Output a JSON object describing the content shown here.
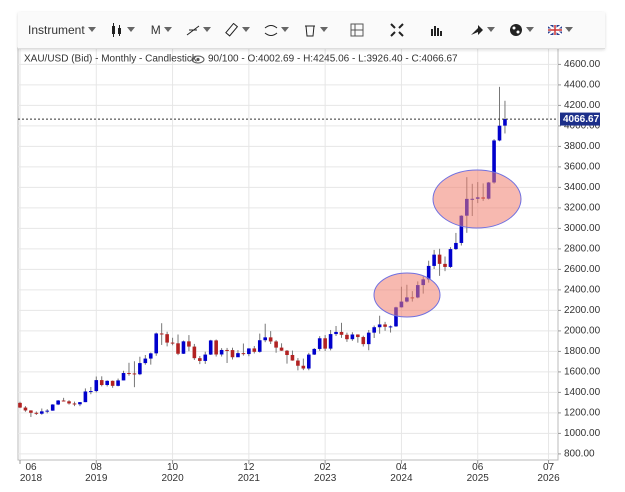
{
  "toolbar": {
    "instrument": "Instrument",
    "period": "M"
  },
  "chart_data": {
    "type": "candlestick",
    "title": "XAU/USD (Bid) - Monthly - Candlestick",
    "subtitle": "90/100 - O:4002.69 - H:4245.06 - L:3926.40 - C:4066.67",
    "last_label": "4066.67",
    "up_color": "#0000cc",
    "down_color": "#b22222",
    "grid": true,
    "x": [
      "2018-06",
      "2018-07",
      "2018-08",
      "2018-09",
      "2018-10",
      "2018-11",
      "2018-12",
      "2019-01",
      "2019-02",
      "2019-03",
      "2019-04",
      "2019-05",
      "2019-06",
      "2019-07",
      "2019-08",
      "2019-09",
      "2019-10",
      "2019-11",
      "2019-12",
      "2020-01",
      "2020-02",
      "2020-03",
      "2020-04",
      "2020-05",
      "2020-06",
      "2020-07",
      "2020-08",
      "2020-09",
      "2020-10",
      "2020-11",
      "2020-12",
      "2021-01",
      "2021-02",
      "2021-03",
      "2021-04",
      "2021-05",
      "2021-06",
      "2021-07",
      "2021-08",
      "2021-09",
      "2021-10",
      "2021-11",
      "2021-12",
      "2022-01",
      "2022-02",
      "2022-03",
      "2022-04",
      "2022-05",
      "2022-06",
      "2022-07",
      "2022-08",
      "2022-09",
      "2022-10",
      "2022-11",
      "2022-12",
      "2023-01",
      "2023-02",
      "2023-03",
      "2023-04",
      "2023-05",
      "2023-06",
      "2023-07",
      "2023-08",
      "2023-09",
      "2023-10",
      "2023-11",
      "2023-12",
      "2024-01",
      "2024-02",
      "2024-03",
      "2024-04",
      "2024-05",
      "2024-06",
      "2024-07",
      "2024-08",
      "2024-09",
      "2024-10",
      "2024-11",
      "2024-12",
      "2025-01",
      "2025-02",
      "2025-03",
      "2025-04",
      "2025-05",
      "2025-06",
      "2025-07",
      "2025-08",
      "2025-09",
      "2025-10",
      "2025-11"
    ],
    "open": [
      1298,
      1252,
      1224,
      1201,
      1192,
      1215,
      1222,
      1282,
      1321,
      1313,
      1292,
      1284,
      1305,
      1409,
      1413,
      1520,
      1472,
      1513,
      1464,
      1517,
      1589,
      1585,
      1577,
      1686,
      1730,
      1781,
      1975,
      1968,
      1886,
      1879,
      1777,
      1898,
      1847,
      1734,
      1707,
      1769,
      1907,
      1770,
      1814,
      1813,
      1743,
      1783,
      1774,
      1829,
      1796,
      1909,
      1937,
      1897,
      1837,
      1807,
      1765,
      1711,
      1660,
      1633,
      1769,
      1824,
      1928,
      1827,
      1969,
      1990,
      1962,
      1919,
      1965,
      1940,
      1871,
      1983,
      2036,
      2063,
      2040,
      2044,
      2230,
      2286,
      2327,
      2326,
      2447,
      2503,
      2634,
      2744,
      2654,
      2624,
      2798,
      2858,
      3124,
      3288,
      3289,
      3303,
      3290,
      3448,
      3858,
      4002.69
    ],
    "high": [
      1309,
      1266,
      1226,
      1214,
      1243,
      1237,
      1285,
      1326,
      1347,
      1324,
      1310,
      1306,
      1439,
      1453,
      1555,
      1557,
      1518,
      1516,
      1535,
      1611,
      1689,
      1704,
      1748,
      1765,
      1789,
      1984,
      2075,
      1992,
      1933,
      1965,
      1906,
      1959,
      1873,
      1755,
      1797,
      1913,
      1916,
      1832,
      1834,
      1836,
      1813,
      1877,
      1830,
      1853,
      1974,
      2070,
      1998,
      1910,
      1879,
      1814,
      1808,
      1735,
      1730,
      1786,
      1833,
      1949,
      1959,
      2009,
      2048,
      2079,
      1983,
      1987,
      1966,
      1953,
      2009,
      2052,
      2148,
      2088,
      2053,
      2236,
      2431,
      2450,
      2388,
      2483,
      2531,
      2685,
      2790,
      2801,
      2726,
      2817,
      2956,
      3128,
      3500,
      3435,
      3452,
      3439,
      3453,
      3871,
      4381,
      4245.06
    ],
    "low": [
      1246,
      1211,
      1160,
      1180,
      1182,
      1196,
      1221,
      1276,
      1311,
      1281,
      1266,
      1266,
      1305,
      1382,
      1400,
      1459,
      1458,
      1445,
      1459,
      1517,
      1563,
      1451,
      1568,
      1670,
      1671,
      1757,
      1863,
      1849,
      1860,
      1764,
      1775,
      1802,
      1717,
      1676,
      1678,
      1765,
      1750,
      1750,
      1687,
      1721,
      1746,
      1759,
      1753,
      1780,
      1788,
      1890,
      1872,
      1787,
      1805,
      1681,
      1709,
      1615,
      1617,
      1616,
      1765,
      1805,
      1804,
      1810,
      1950,
      1932,
      1893,
      1903,
      1885,
      1848,
      1811,
      1931,
      1973,
      2001,
      1984,
      2039,
      2228,
      2277,
      2286,
      2318,
      2364,
      2471,
      2604,
      2537,
      2583,
      2614,
      2790,
      2833,
      2957,
      3121,
      3247,
      3268,
      3282,
      3436,
      3850,
      3926.4
    ],
    "close": [
      1252,
      1224,
      1201,
      1192,
      1215,
      1222,
      1282,
      1321,
      1313,
      1292,
      1284,
      1305,
      1409,
      1413,
      1520,
      1472,
      1513,
      1464,
      1517,
      1589,
      1585,
      1577,
      1686,
      1730,
      1781,
      1975,
      1968,
      1886,
      1879,
      1777,
      1898,
      1847,
      1734,
      1707,
      1769,
      1907,
      1770,
      1814,
      1813,
      1743,
      1783,
      1774,
      1829,
      1796,
      1909,
      1937,
      1897,
      1837,
      1807,
      1765,
      1711,
      1660,
      1633,
      1769,
      1824,
      1928,
      1827,
      1969,
      1990,
      1962,
      1919,
      1965,
      1940,
      1871,
      1983,
      2036,
      2063,
      2040,
      2044,
      2230,
      2286,
      2327,
      2326,
      2447,
      2503,
      2634,
      2744,
      2654,
      2624,
      2798,
      2858,
      3124,
      3288,
      3289,
      3303,
      3290,
      3448,
      3858,
      4002,
      4066.67
    ],
    "xlim": [
      "2018-06",
      "2026-08"
    ],
    "xticks": [
      {
        "value": "2018-06",
        "label": "06 2018"
      },
      {
        "value": "2019-08",
        "label": "08 2019"
      },
      {
        "value": "2020-10",
        "label": "10 2020"
      },
      {
        "value": "2021-12",
        "label": "12 2021"
      },
      {
        "value": "2023-02",
        "label": "02 2023"
      },
      {
        "value": "2024-04",
        "label": "04 2024"
      },
      {
        "value": "2025-06",
        "label": "06 2025"
      },
      {
        "value": "2026-07",
        "label": "07 2026"
      }
    ],
    "ylim": [
      760,
      4760
    ],
    "yticks": [
      {
        "value": 800,
        "label": "800.00"
      },
      {
        "value": 1000,
        "label": "1000.00"
      },
      {
        "value": 1200,
        "label": "1200.00"
      },
      {
        "value": 1400,
        "label": "1400.00"
      },
      {
        "value": 1600,
        "label": "1600.00"
      },
      {
        "value": 1800,
        "label": "1800.00"
      },
      {
        "value": 2000,
        "label": "2000.00"
      },
      {
        "value": 2200,
        "label": "2200.00"
      },
      {
        "value": 2400,
        "label": "2400.00"
      },
      {
        "value": 2600,
        "label": "2600.00"
      },
      {
        "value": 2800,
        "label": "2800.00"
      },
      {
        "value": 3000,
        "label": "3000.00"
      },
      {
        "value": 3200,
        "label": "3200.00"
      },
      {
        "value": 3400,
        "label": "3400.00"
      },
      {
        "value": 3600,
        "label": "3600.00"
      },
      {
        "value": 3800,
        "label": "3800.00"
      },
      {
        "value": 4000,
        "label": "4000.00"
      },
      {
        "value": 4200,
        "label": "4200.00"
      },
      {
        "value": 4400,
        "label": "4400.00"
      },
      {
        "value": 4600,
        "label": "4600.00"
      }
    ]
  }
}
